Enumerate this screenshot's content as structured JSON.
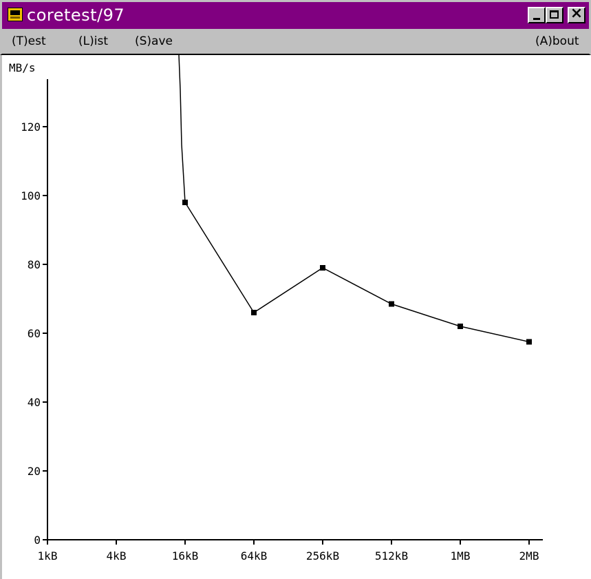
{
  "window": {
    "title": "coretest/97",
    "icon": "chip-app-icon",
    "controls": [
      "minimize",
      "maximize",
      "close"
    ]
  },
  "menu": {
    "items": [
      {
        "label": "(T)est"
      },
      {
        "label": "(L)ist"
      },
      {
        "label": "(S)ave"
      },
      {
        "label": "(A)bout"
      }
    ]
  },
  "chart_data": {
    "type": "line",
    "ylabel": "MB/s",
    "ylim": [
      0,
      130
    ],
    "yticks": [
      0,
      20,
      40,
      60,
      80,
      100,
      120
    ],
    "categories": [
      "1kB",
      "4kB",
      "16kB",
      "64kB",
      "256kB",
      "512kB",
      "1MB",
      "2MB"
    ],
    "series": [
      {
        "values": [
          null,
          null,
          98,
          66,
          79,
          68.5,
          62,
          57.5
        ],
        "offscale_from": 1
      }
    ],
    "grid": false
  }
}
